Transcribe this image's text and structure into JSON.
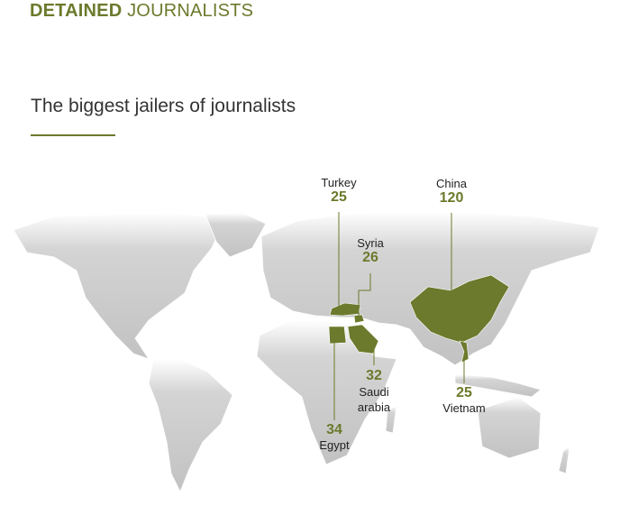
{
  "header": {
    "title_bold": "DETAINED",
    "title_rest": "JOURNALISTS",
    "subtitle": "The biggest jailers of journalists"
  },
  "countries": [
    {
      "name": "Turkey",
      "value": 25
    },
    {
      "name": "Syria",
      "value": 26
    },
    {
      "name": "China",
      "value": 120
    },
    {
      "name": "Saudi arabia",
      "value": 32
    },
    {
      "name": "Vietnam",
      "value": 25
    },
    {
      "name": "Egypt",
      "value": 34
    }
  ]
}
